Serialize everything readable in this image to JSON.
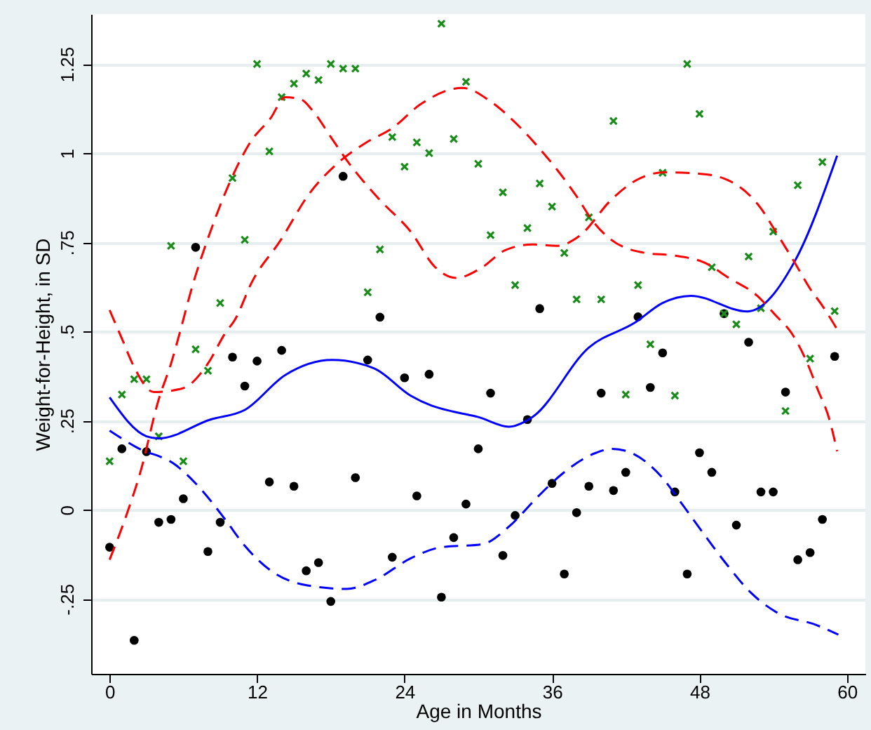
{
  "chart_data": {
    "type": "scatter",
    "xlabel": "Age in Months",
    "ylabel": "Weight-for-Height, in SD",
    "xlim": [
      -1.5,
      61.5
    ],
    "ylim": [
      -0.46,
      1.39
    ],
    "xticks": [
      0,
      12,
      24,
      36,
      48,
      60
    ],
    "yticks": [
      {
        "value": -0.25,
        "label": "-.25"
      },
      {
        "value": 0,
        "label": "0"
      },
      {
        "value": 0.25,
        "label": ".25"
      },
      {
        "value": 0.5,
        "label": ".5"
      },
      {
        "value": 0.75,
        "label": ".75"
      },
      {
        "value": 1,
        "label": "1"
      },
      {
        "value": 1.25,
        "label": "1.25"
      }
    ],
    "grid": "y",
    "x": [
      0,
      1,
      2,
      3,
      4,
      5,
      6,
      7,
      8,
      9,
      10,
      11,
      12,
      13,
      14,
      15,
      16,
      17,
      18,
      19,
      20,
      21,
      22,
      23,
      24,
      25,
      26,
      27,
      28,
      29,
      30,
      31,
      32,
      33,
      34,
      35,
      36,
      37,
      38,
      39,
      40,
      41,
      42,
      43,
      44,
      45,
      46,
      47,
      48,
      49,
      50,
      51,
      52,
      53,
      54,
      55,
      56,
      57,
      58,
      59
    ],
    "series": [
      {
        "marker": "circle",
        "color": "#000000",
        "values": [
          -0.105,
          0.171,
          -0.366,
          0.163,
          -0.035,
          -0.027,
          0.031,
          0.736,
          -0.117,
          -0.035,
          0.428,
          0.347,
          0.417,
          0.078,
          0.447,
          0.066,
          -0.171,
          -0.148,
          -0.257,
          0.935,
          0.09,
          0.42,
          0.54,
          -0.133,
          0.37,
          0.039,
          0.38,
          -0.245,
          -0.078,
          0.016,
          0.171,
          0.327,
          -0.128,
          -0.016,
          0.253,
          0.564,
          0.074,
          -0.18,
          -0.008,
          0.066,
          0.327,
          0.054,
          0.105,
          0.541,
          0.343,
          0.44,
          0.05,
          -0.18,
          0.16,
          0.105,
          0.55,
          -0.043,
          0.47,
          0.05,
          0.05,
          0.33,
          -0.14,
          -0.12,
          -0.027,
          0.43
        ]
      },
      {
        "marker": "cross",
        "color": "#1a8c1a",
        "values": [
          0.136,
          0.323,
          0.366,
          0.366,
          0.206,
          0.74,
          0.136,
          0.45,
          0.39,
          0.58,
          0.93,
          0.757,
          1.25,
          1.005,
          1.157,
          1.195,
          1.223,
          1.205,
          1.25,
          1.237,
          1.237,
          0.61,
          0.73,
          1.045,
          0.962,
          1.03,
          1.0,
          1.363,
          1.04,
          1.2,
          0.97,
          0.77,
          0.89,
          0.63,
          0.79,
          0.915,
          0.85,
          0.72,
          0.59,
          0.82,
          0.59,
          1.09,
          0.323,
          0.63,
          0.464,
          0.945,
          0.32,
          1.25,
          1.11,
          0.68,
          0.55,
          0.52,
          0.71,
          0.565,
          0.78,
          0.277,
          0.91,
          0.424,
          0.975,
          0.557
        ]
      },
      {
        "type": "line",
        "line_style": "solid",
        "color": "#0000ff",
        "x": [
          0,
          3,
          4,
          8.2,
          11,
          14.3,
          18.1,
          21.5,
          24.5,
          26.2,
          28,
          30,
          32.5,
          34.4,
          39,
          42.8,
          45,
          47.3,
          51.9,
          55.8,
          59.2
        ],
        "values": [
          0.315,
          0.206,
          0.2,
          0.253,
          0.28,
          0.378,
          0.42,
          0.397,
          0.32,
          0.292,
          0.275,
          0.26,
          0.233,
          0.26,
          0.455,
          0.526,
          0.58,
          0.6,
          0.556,
          0.7,
          0.993
        ]
      },
      {
        "type": "line",
        "line_style": "dashed",
        "color": "#0000ff",
        "x": [
          0,
          2.2,
          5.4,
          7.3,
          9.4,
          11,
          13.3,
          15.8,
          19.3,
          21.7,
          24.5,
          27,
          30.3,
          32.5,
          34.8,
          36.8,
          39.6,
          40.9,
          42.2,
          44.9,
          46.5,
          48.4,
          50.1,
          52.2,
          54.3,
          57.5,
          59.3
        ],
        "values": [
          0.222,
          0.175,
          0.125,
          0.063,
          -0.027,
          -0.101,
          -0.175,
          -0.21,
          -0.222,
          -0.195,
          -0.136,
          -0.105,
          -0.097,
          -0.047,
          0.035,
          0.1,
          0.16,
          0.171,
          0.163,
          0.093,
          0.02,
          -0.07,
          -0.148,
          -0.233,
          -0.288,
          -0.323,
          -0.35
        ]
      },
      {
        "type": "line",
        "line_style": "dashed",
        "color": "#ff0000",
        "x": [
          0,
          1,
          2,
          3.6,
          5.9,
          8,
          9.4,
          10.2,
          11.6,
          13.9,
          16.2,
          18.5,
          20.8,
          23,
          25.3,
          28.7,
          31,
          33,
          34.8,
          36.4,
          37.9,
          39.4,
          40.7,
          43.6,
          45.9,
          48.4,
          50.4,
          52.7,
          54.2,
          55.5,
          56.7,
          57.6,
          58.6,
          59.2
        ],
        "values": [
          0.56,
          0.48,
          0.4,
          0.33,
          0.34,
          0.41,
          0.495,
          0.533,
          0.64,
          0.755,
          0.884,
          0.97,
          1.028,
          1.07,
          1.137,
          1.183,
          1.145,
          1.086,
          1.02,
          0.954,
          0.884,
          0.806,
          0.76,
          0.72,
          0.713,
          0.693,
          0.65,
          0.6,
          0.545,
          0.495,
          0.417,
          0.339,
          0.25,
          0.164
        ]
      },
      {
        "type": "line",
        "line_style": "dashed",
        "color": "#ff0000",
        "x": [
          0,
          1.4,
          2.5,
          4,
          5,
          5.7,
          6.7,
          8.2,
          10.2,
          11.4,
          13.1,
          14.3,
          15.6,
          16.5,
          18.1,
          19.3,
          21.9,
          24.5,
          26.5,
          28.2,
          30.2,
          32.2,
          34.4,
          36.4,
          38.2,
          40.9,
          42.8,
          45.1,
          48.1,
          50.4,
          53,
          54.2,
          55.8,
          57,
          58,
          59.2
        ],
        "values": [
          -0.14,
          -0.012,
          0.105,
          0.31,
          0.41,
          0.495,
          0.623,
          0.78,
          0.95,
          1.028,
          1.098,
          1.157,
          1.15,
          1.12,
          1.04,
          0.98,
          0.872,
          0.78,
          0.68,
          0.65,
          0.677,
          0.728,
          0.744,
          0.74,
          0.767,
          0.872,
          0.923,
          0.946,
          0.942,
          0.923,
          0.845,
          0.78,
          0.69,
          0.62,
          0.572,
          0.506
        ]
      }
    ]
  }
}
